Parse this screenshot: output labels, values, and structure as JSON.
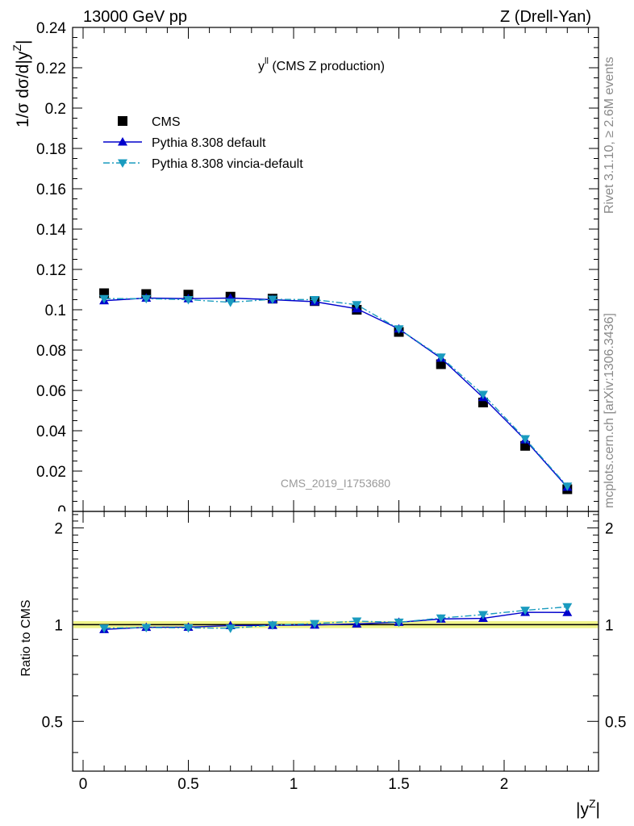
{
  "header": {
    "left": "13000 GeV pp",
    "right": "Z (Drell-Yan)"
  },
  "side_labels": {
    "rivet": "Rivet 3.1.10, ≥ 2.6M events",
    "mcplots": "mcplots.cern.ch [arXiv:1306.3436]"
  },
  "watermark": "CMS_2019_I1753680",
  "chart_data": [
    {
      "type": "scatter",
      "panel": "main",
      "title": "y^ll (CMS Z production)",
      "title_main": "y",
      "title_sup": "ll",
      "title_rest": " (CMS Z production)",
      "ylabel": "1/σ dσ/d|y^Z|",
      "ylabel_main": "1/σ dσ/d|y",
      "ylabel_sup": "Z",
      "ylabel_end": "|",
      "xlabel": "",
      "xlim": [
        0,
        2.4
      ],
      "ylim": [
        0,
        0.24
      ],
      "yticks": [
        0.02,
        0.04,
        0.06,
        0.08,
        0.1,
        0.12,
        0.14,
        0.16,
        0.18,
        0.2,
        0.22,
        0.24
      ],
      "ytick_labels": [
        "0.02",
        "0.04",
        "0.06",
        "0.08",
        "0.1",
        "0.12",
        "0.14",
        "0.16",
        "0.18",
        "0.2",
        "0.22",
        "0.24"
      ],
      "legend_position": "top-left",
      "x": [
        0.1,
        0.3,
        0.5,
        0.7,
        0.9,
        1.1,
        1.3,
        1.5,
        1.7,
        1.9,
        2.1,
        2.3
      ],
      "series": [
        {
          "name": "CMS",
          "color": "#000000",
          "marker": "square",
          "line": "none",
          "values": [
            0.1082,
            0.1078,
            0.1075,
            0.1065,
            0.1055,
            0.1043,
            0.1,
            0.089,
            0.073,
            0.054,
            0.0325,
            0.011
          ]
        },
        {
          "name": "Pythia 8.308 default",
          "color": "#0000cc",
          "marker": "triangle-up",
          "line": "solid",
          "values": [
            0.1045,
            0.1058,
            0.1055,
            0.1058,
            0.105,
            0.104,
            0.1005,
            0.0905,
            0.076,
            0.0565,
            0.0355,
            0.012
          ]
        },
        {
          "name": "Pythia 8.308 vincia-default",
          "color": "#1a9bbf",
          "marker": "triangle-down",
          "line": "dashdot",
          "values": [
            0.1055,
            0.1055,
            0.105,
            0.1037,
            0.1052,
            0.105,
            0.1025,
            0.0905,
            0.0765,
            0.058,
            0.036,
            0.0125
          ]
        }
      ]
    },
    {
      "type": "scatter",
      "panel": "ratio",
      "ylabel": "Ratio to CMS",
      "xlabel": "|y^Z|",
      "xlabel_main": "|y",
      "xlabel_sup": "Z",
      "xlabel_end": "|",
      "xlim": [
        0,
        2.4
      ],
      "ylim": [
        0.35,
        2.25
      ],
      "ticks_right": [
        0.5,
        1,
        2
      ],
      "tick_labels_right": [
        "0.5",
        "1",
        "2"
      ],
      "xticks": [
        0,
        0.5,
        1,
        1.5,
        2
      ],
      "xtick_labels": [
        "0",
        "0.5",
        "1",
        "1.5",
        "2"
      ],
      "band_color": "#f0f48a",
      "x": [
        0.1,
        0.3,
        0.5,
        0.7,
        0.9,
        1.1,
        1.3,
        1.5,
        1.7,
        1.9,
        2.1,
        2.3
      ],
      "series": [
        {
          "name": "Pythia 8.308 default",
          "color": "#0000cc",
          "marker": "triangle-up",
          "line": "solid",
          "values": [
            0.966,
            0.981,
            0.982,
            0.993,
            0.995,
            0.997,
            1.005,
            1.017,
            1.041,
            1.046,
            1.092,
            1.091
          ]
        },
        {
          "name": "Pythia 8.308 vincia-default",
          "color": "#1a9bbf",
          "marker": "triangle-down",
          "line": "dashdot",
          "values": [
            0.975,
            0.979,
            0.977,
            0.974,
            0.997,
            1.007,
            1.025,
            1.017,
            1.048,
            1.074,
            1.108,
            1.136
          ]
        }
      ]
    }
  ]
}
